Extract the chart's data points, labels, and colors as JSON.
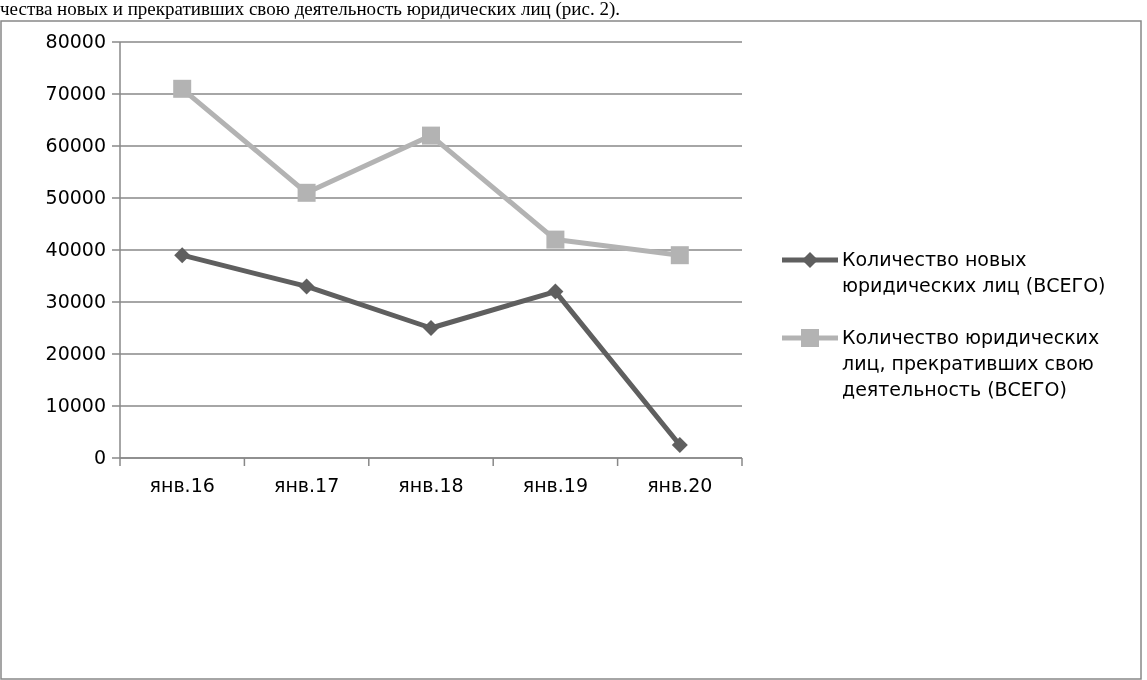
{
  "chart_data": {
    "type": "line",
    "annotations": [
      "чества новых и прекративших свою деятельность юридических лиц (рис. 2)."
    ],
    "categories": [
      "янв.16",
      "янв.17",
      "янв.18",
      "янв.19",
      "янв.20"
    ],
    "series": [
      {
        "name": "Количество новых юридических лиц (ВСЕГО)",
        "color": "#5f5f5f",
        "marker": "diamond",
        "values": [
          39000,
          33000,
          25000,
          32000,
          2500
        ]
      },
      {
        "name": "Количество юридических лиц, прекративших свою деятельность (ВСЕГО)",
        "color": "#b3b3b3",
        "marker": "square",
        "values": [
          71000,
          51000,
          62000,
          42000,
          39000
        ]
      }
    ],
    "ylim": [
      0,
      80000
    ],
    "yticks": [
      0,
      10000,
      20000,
      30000,
      40000,
      50000,
      60000,
      70000,
      80000
    ],
    "grid": "y",
    "legend": "right"
  }
}
